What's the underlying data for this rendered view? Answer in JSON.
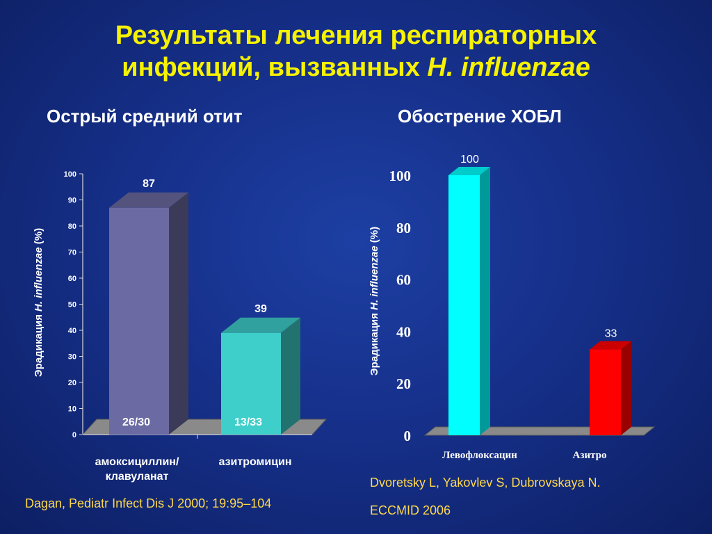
{
  "slide": {
    "title_line1": "Результаты лечения респираторных",
    "title_line2_prefix": "инфекций, вызванных ",
    "title_line2_italic": "H. influenzae",
    "colors": {
      "title": "#f6f200",
      "background": "#16308a",
      "reference": "#ffd84a"
    }
  },
  "chart_data": [
    {
      "type": "bar",
      "title": "Острый средний отит",
      "ylabel_prefix": "Эрадикация",
      "ylabel_italic": "H. influenzae",
      "ylabel_suffix": "(%)",
      "categories": [
        "амоксициллин/ клавуланат",
        "азитромицин"
      ],
      "values": [
        87,
        39
      ],
      "inner_labels": [
        "26/30",
        "13/33"
      ],
      "ylim": [
        0,
        100
      ],
      "yticks": [
        "0",
        "10",
        "20",
        "30",
        "40",
        "50",
        "60",
        "70",
        "80",
        "90",
        "100"
      ],
      "colors": [
        "#6b6aa2",
        "#3ecfcb"
      ],
      "style": "3d",
      "grid": false
    },
    {
      "type": "bar",
      "title": "Обострение ХОБЛ",
      "ylabel_prefix": "Эрадикация",
      "ylabel_italic": "H. influenzae",
      "ylabel_suffix": "(%)",
      "categories": [
        "Левофлоксацин",
        "Азитро"
      ],
      "values": [
        100,
        33
      ],
      "ylim": [
        0,
        100
      ],
      "yticks": [
        "0",
        "20",
        "40",
        "60",
        "80",
        "100"
      ],
      "colors": [
        "#00ffff",
        "#ff0000"
      ],
      "style": "3d",
      "grid": false
    }
  ],
  "references": {
    "left": "Dagan, Pediatr Infect Dis J 2000; 19:95–104",
    "right_line1": "Dvoretsky L, Yakovlev S, Dubrovskaya N.",
    "right_line2": "ECCMID 2006"
  }
}
